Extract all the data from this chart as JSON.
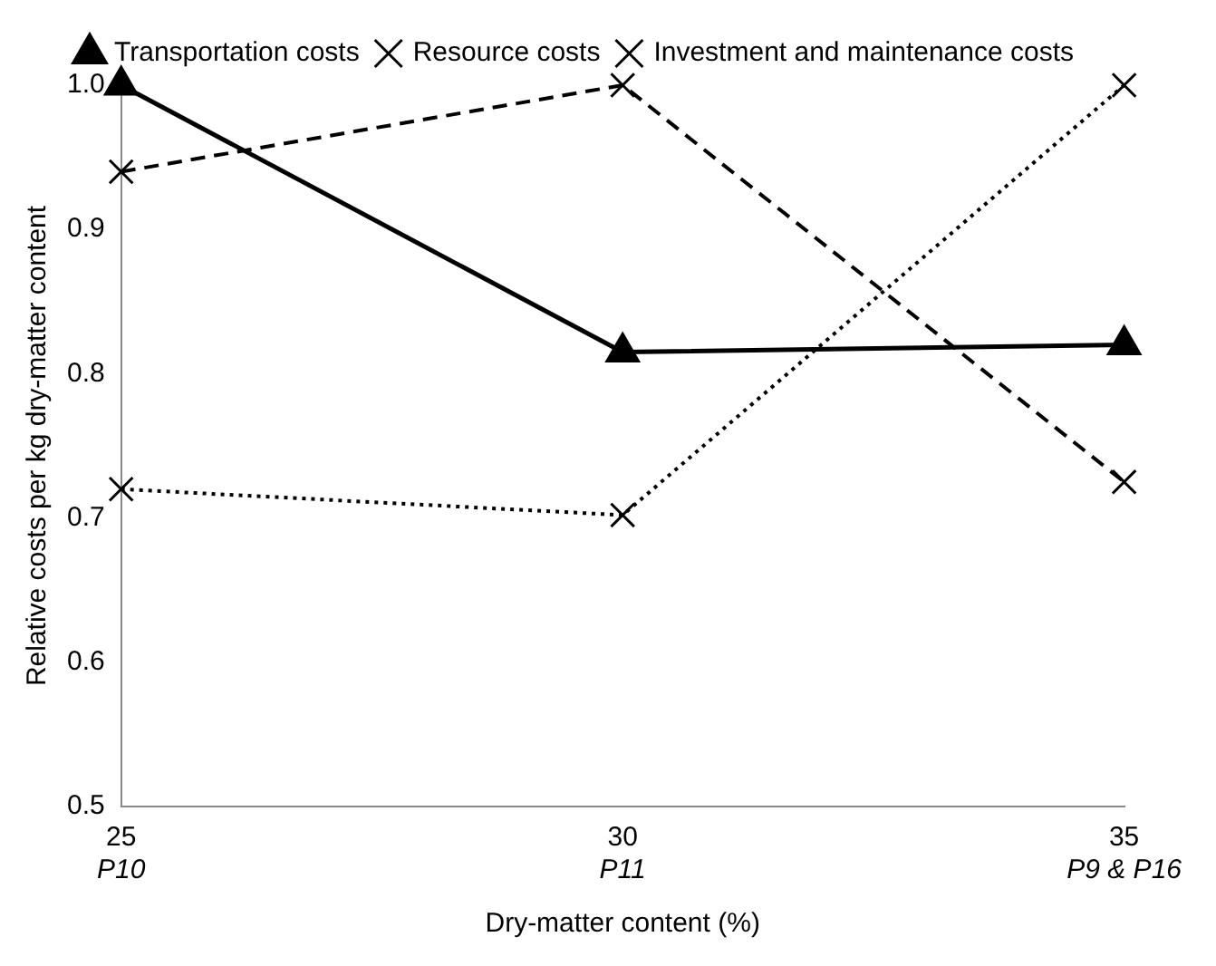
{
  "chart_data": {
    "type": "line",
    "xlabel": "Dry-matter content (%)",
    "ylabel": "Relative costs per kg dry-matter content",
    "categories": [
      "25\nP10",
      "30\nP11",
      "35\nP9 & P16"
    ],
    "series": [
      {
        "name": "Transportation costs",
        "color": "#000000",
        "values": [
          1.0,
          0.815,
          0.82
        ],
        "marker": "triangle",
        "line_style": "solid"
      },
      {
        "name": "Resource costs",
        "color": "#000000",
        "values": [
          0.94,
          1.0,
          0.725
        ],
        "marker": "cross",
        "line_style": "dashed"
      },
      {
        "name": "Investment and maintenance costs",
        "color": "#000000",
        "values": [
          0.72,
          0.702,
          1.0
        ],
        "marker": "cross",
        "line_style": "dotted"
      }
    ],
    "ylim": [
      0.5,
      1.0
    ],
    "yticks": [
      0.5,
      0.6,
      0.7,
      0.8,
      0.9,
      {
        "value": 1.0,
        "label": "1.0"
      }
    ],
    "grid": false,
    "legend": "top"
  }
}
